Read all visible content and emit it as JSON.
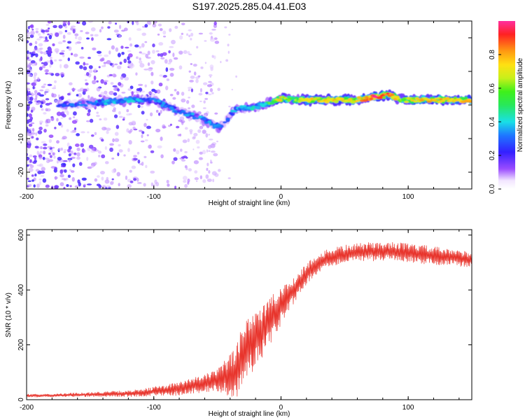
{
  "title": "S197.2025.285.04.41.E03",
  "colors": {
    "snr_line": "#e8342c",
    "ridge_strong": "#e0202a",
    "ridge_mid": "#31d84a",
    "ridge_low": "#1e9ee8",
    "noise": "#7b2bd8",
    "noise_light": "#c8a8f0"
  },
  "chart_data": [
    {
      "type": "heatmap",
      "xlabel": "Height of straight line (km)",
      "ylabel": "Frequency (Hz)",
      "xlim": [
        -200,
        150
      ],
      "ylim": [
        -25,
        25
      ],
      "xticks": [
        -200,
        -100,
        0,
        100
      ],
      "yticks": [
        -20,
        -10,
        0,
        10,
        20
      ],
      "ridge": {
        "x": [
          -175,
          -150,
          -120,
          -100,
          -92,
          -80,
          -70,
          -60,
          -50,
          -45,
          -40,
          -35,
          -30,
          -20,
          -10,
          0,
          10,
          20,
          40,
          60,
          75,
          85,
          95,
          110,
          130,
          150
        ],
        "y": [
          0,
          0.5,
          1.5,
          1.5,
          0,
          -2,
          -3,
          -4.5,
          -6.5,
          -6,
          -3,
          -1,
          -1,
          -0.5,
          0.5,
          2,
          1.5,
          1.5,
          1.5,
          1.5,
          2.5,
          3,
          1.5,
          1.5,
          1.5,
          1.5
        ],
        "amplitude": [
          0.25,
          0.3,
          0.35,
          0.3,
          0.3,
          0.25,
          0.3,
          0.3,
          0.35,
          0.25,
          0.3,
          0.3,
          0.35,
          0.4,
          0.5,
          0.75,
          0.55,
          0.7,
          0.75,
          0.7,
          0.95,
          0.85,
          0.6,
          0.75,
          0.75,
          0.8
        ]
      },
      "colorbar": {
        "label": "Normalized spectral amplitude",
        "range": [
          0,
          1
        ],
        "ticks": [
          "0.0",
          "0.2",
          "0.4",
          "0.6",
          "0.8"
        ]
      }
    },
    {
      "type": "line",
      "xlabel": "Height of straight line (km)",
      "ylabel": "SNR (10 * v/v)",
      "xlim": [
        -200,
        150
      ],
      "ylim": [
        0,
        620
      ],
      "xticks": [
        -200,
        -100,
        0,
        100
      ],
      "yticks": [
        0,
        200,
        400,
        600
      ],
      "series": [
        {
          "name": "SNR",
          "x": [
            -200,
            -180,
            -160,
            -140,
            -120,
            -110,
            -100,
            -90,
            -80,
            -70,
            -60,
            -50,
            -45,
            -40,
            -35,
            -30,
            -25,
            -20,
            -15,
            -10,
            -5,
            0,
            5,
            10,
            15,
            20,
            30,
            40,
            50,
            60,
            70,
            80,
            90,
            100,
            110,
            120,
            130,
            140,
            150
          ],
          "y": [
            15,
            15,
            18,
            20,
            22,
            25,
            30,
            35,
            40,
            50,
            60,
            70,
            80,
            90,
            100,
            180,
            200,
            230,
            250,
            280,
            310,
            340,
            370,
            400,
            430,
            460,
            500,
            520,
            530,
            535,
            540,
            540,
            540,
            535,
            530,
            525,
            520,
            515,
            510
          ],
          "noise": [
            6,
            6,
            8,
            10,
            12,
            14,
            18,
            22,
            25,
            30,
            35,
            40,
            60,
            80,
            100,
            120,
            120,
            110,
            100,
            90,
            80,
            70,
            60,
            50,
            45,
            40,
            35,
            35,
            35,
            35,
            35,
            35,
            35,
            35,
            35,
            35,
            30,
            30,
            30
          ]
        }
      ]
    }
  ]
}
